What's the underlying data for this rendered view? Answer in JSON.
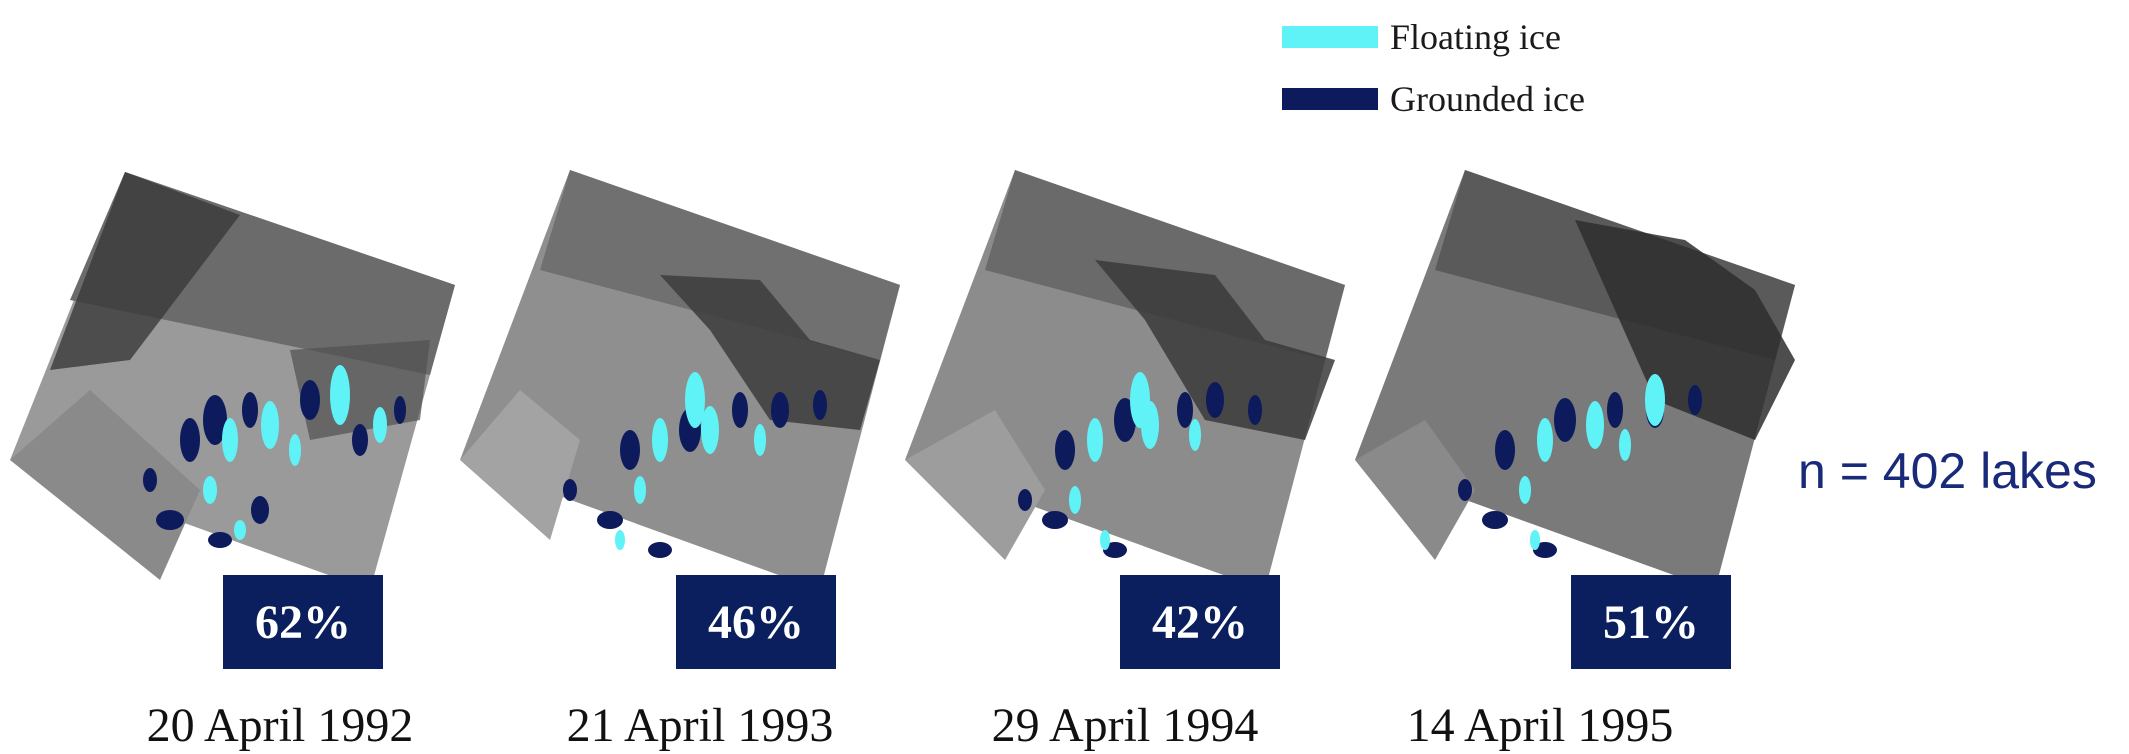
{
  "legend": [
    {
      "label": "Floating ice",
      "color": "#5ff3f8"
    },
    {
      "label": "Grounded ice",
      "color": "#0d1a5c"
    }
  ],
  "panels": [
    {
      "date": "20 April 1992",
      "floating_ice_percent": "62%"
    },
    {
      "date": "21 April 1993",
      "floating_ice_percent": "46%"
    },
    {
      "date": "29 April 1994",
      "floating_ice_percent": "42%"
    },
    {
      "date": "14 April 1995",
      "floating_ice_percent": "51%"
    }
  ],
  "lake_count": "n = 402 lakes",
  "colors": {
    "badge_background": "#0b1f5e",
    "count_text": "#1a2a7a"
  }
}
